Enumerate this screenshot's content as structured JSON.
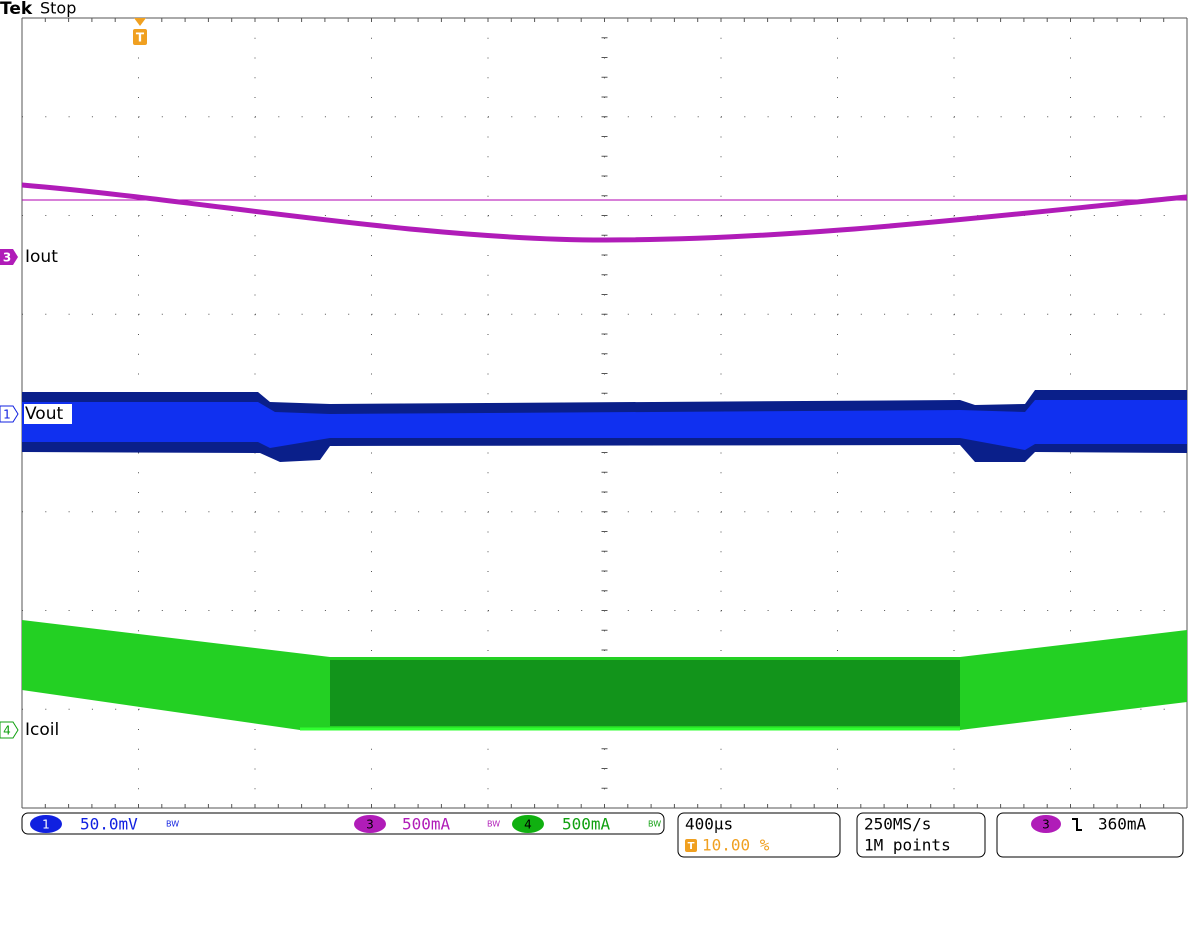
{
  "header": {
    "brand": "Tek",
    "status": "Stop"
  },
  "trigger_marker": "T",
  "channels": [
    {
      "number": "3",
      "label": "Iout"
    },
    {
      "number": "1",
      "label": "Vout"
    },
    {
      "number": "4",
      "label": "Icoil"
    }
  ],
  "status_bar": {
    "ch1": {
      "number": "1",
      "scale": "50.0mV"
    },
    "ch3": {
      "number": "3",
      "scale": "500mA"
    },
    "ch4": {
      "number": "4",
      "scale": "500mA"
    },
    "bw": "BW",
    "timebase": "400µs",
    "trigger_icon": "T",
    "trigger_position": "10.00 %",
    "sample_rate": "250MS/s",
    "record_length": "1M points",
    "trigger": {
      "source": "3",
      "level": "360mA"
    }
  }
}
